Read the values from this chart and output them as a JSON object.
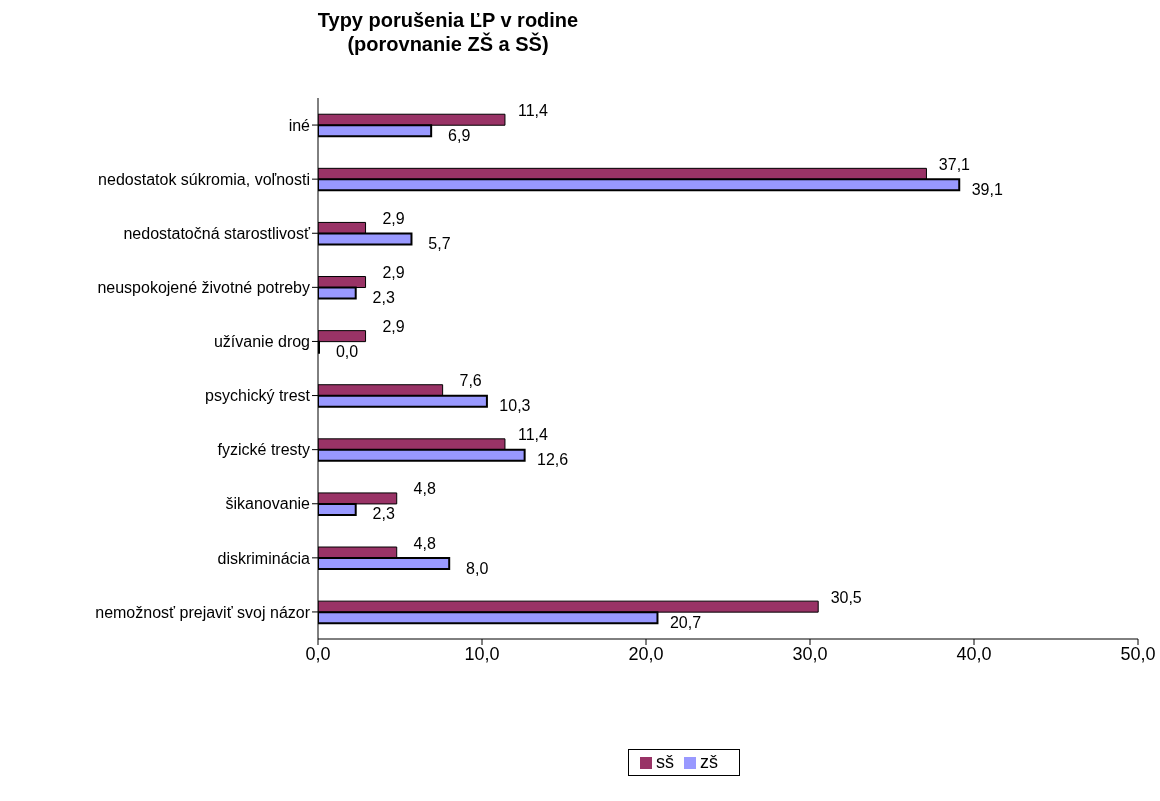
{
  "chart_data": {
    "type": "bar",
    "orientation": "horizontal",
    "title": "Typy porušenia ĽP v rodine",
    "subtitle": "(porovnanie ZŠ a SŠ)",
    "categories": [
      "iné",
      "nedostatok súkromia, voľnosti",
      "nedostatočná starostlivosť",
      "neuspokojené životné potreby",
      "užívanie drog",
      "psychický trest",
      "fyzické tresty",
      "šikanovanie",
      "diskriminácia",
      "nemožnosť prejaviť svoj názor"
    ],
    "series": [
      {
        "name": "sš",
        "color": "#993366",
        "values": [
          11.4,
          37.1,
          2.9,
          2.9,
          2.9,
          7.6,
          11.4,
          4.8,
          4.8,
          30.5
        ],
        "value_labels": [
          "11,4",
          "37,1",
          "2,9",
          "2,9",
          "2,9",
          "7,6",
          "11,4",
          "4,8",
          "4,8",
          "30,5"
        ]
      },
      {
        "name": "zš",
        "color": "#9999ff",
        "values": [
          6.9,
          39.1,
          5.7,
          2.3,
          0.0,
          10.3,
          12.6,
          2.3,
          8.0,
          20.7
        ],
        "value_labels": [
          "6,9",
          "39,1",
          "5,7",
          "2,3",
          "0,0",
          "10,3",
          "12,6",
          "2,3",
          "8,0",
          "20,7"
        ]
      }
    ],
    "xlim": [
      0,
      50
    ],
    "xticks": [
      {
        "value": 0,
        "label": "0,0"
      },
      {
        "value": 10,
        "label": "10,0"
      },
      {
        "value": 20,
        "label": "20,0"
      },
      {
        "value": 30,
        "label": "30,0"
      },
      {
        "value": 40,
        "label": "40,0"
      },
      {
        "value": 50,
        "label": "50,0"
      }
    ],
    "grid": false,
    "legend": "bottom"
  }
}
